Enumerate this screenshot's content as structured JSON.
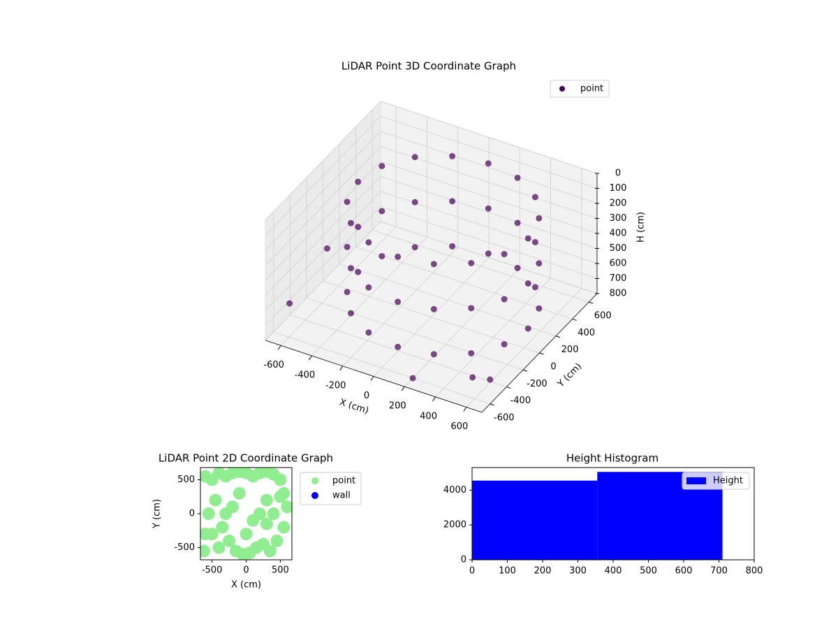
{
  "chart_data": [
    {
      "type": "scatter3d",
      "title": "LiDAR Point 3D Coordinate Graph",
      "xlabel": "X (cm)",
      "ylabel": "Y (cm)",
      "zlabel": "H (cm)",
      "xlim": [
        -700,
        700
      ],
      "ylim": [
        -700,
        700
      ],
      "zlim": [
        0,
        800
      ],
      "z_inverted": true,
      "xticks": [
        -600,
        -400,
        -200,
        0,
        200,
        400,
        600
      ],
      "yticks": [
        -600,
        -400,
        -200,
        0,
        200,
        400,
        600
      ],
      "zticks": [
        0,
        100,
        200,
        300,
        400,
        500,
        600,
        700,
        800
      ],
      "legend": "upper right",
      "series": [
        {
          "name": "point",
          "color": "#440154",
          "x": [
            600,
            558,
            439,
            261,
            50,
            -161,
            -339,
            -458,
            -500,
            -458,
            -339,
            -161,
            50,
            261,
            439,
            558,
            600,
            558,
            439,
            261,
            50,
            -161,
            -339,
            -458,
            -500,
            -458,
            -339,
            -161,
            50,
            261,
            439,
            558,
            600,
            558,
            439,
            261,
            50,
            -161,
            -339,
            -458,
            -500,
            -458,
            -339,
            -161,
            50,
            261,
            439,
            558,
            -650,
            -620,
            620,
            560,
            200
          ],
          "y": [
            50,
            261,
            439,
            558,
            600,
            558,
            439,
            261,
            50,
            -161,
            -339,
            -458,
            -500,
            -458,
            -339,
            -161,
            50,
            261,
            439,
            558,
            600,
            558,
            439,
            261,
            50,
            -161,
            -339,
            -458,
            -500,
            -458,
            -339,
            -161,
            50,
            261,
            439,
            558,
            600,
            558,
            439,
            261,
            50,
            -161,
            -339,
            -458,
            -500,
            -458,
            -339,
            -161,
            -500,
            -100,
            -450,
            -550,
            -600
          ],
          "z": [
            100,
            100,
            100,
            100,
            100,
            100,
            100,
            100,
            100,
            100,
            100,
            100,
            100,
            100,
            100,
            100,
            400,
            400,
            400,
            400,
            400,
            400,
            400,
            400,
            400,
            400,
            400,
            400,
            400,
            400,
            400,
            400,
            700,
            700,
            700,
            700,
            700,
            700,
            700,
            700,
            700,
            700,
            700,
            700,
            700,
            700,
            700,
            700,
            650,
            500,
            750,
            700,
            800
          ]
        }
      ]
    },
    {
      "type": "scatter",
      "title": "LiDAR Point 2D Coordinate Graph",
      "xlabel": "X (cm)",
      "ylabel": "Y (cm)",
      "xlim": [
        -670,
        670
      ],
      "ylim": [
        -680,
        680
      ],
      "xticks": [
        -500,
        0,
        500
      ],
      "yticks": [
        -500,
        0,
        500
      ],
      "legend": "outside right",
      "series": [
        {
          "name": "point",
          "color": "#90ee90",
          "x": [
            -600,
            -620,
            -500,
            -400,
            -300,
            -200,
            -100,
            0,
            100,
            200,
            300,
            400,
            500,
            550,
            600,
            -550,
            -450,
            -350,
            -250,
            -150,
            -50,
            50,
            150,
            250,
            350,
            450,
            550,
            -500,
            -300,
            -100,
            100,
            300,
            500,
            -600,
            -400,
            200,
            -200,
            0,
            400,
            300
          ],
          "y": [
            550,
            -550,
            500,
            600,
            550,
            600,
            620,
            600,
            550,
            600,
            620,
            580,
            500,
            300,
            100,
            0,
            200,
            -200,
            -400,
            -550,
            -600,
            -580,
            -500,
            -450,
            -550,
            -400,
            -200,
            -300,
            0,
            300,
            -100,
            200,
            250,
            -300,
            -500,
            0,
            100,
            -300,
            0,
            -150
          ]
        },
        {
          "name": "wall",
          "color": "#0000ff",
          "x": [],
          "y": []
        }
      ]
    },
    {
      "type": "histogram",
      "title": "Height Histogram",
      "xlim": [
        0,
        800
      ],
      "ylim": [
        0,
        5300
      ],
      "xticks": [
        0,
        100,
        200,
        300,
        400,
        500,
        600,
        700,
        800
      ],
      "yticks": [
        0,
        2000,
        4000
      ],
      "legend": "upper right",
      "series": [
        {
          "name": "Height",
          "color": "#0000ff",
          "bins": [
            0,
            355,
            710
          ],
          "values": [
            4550,
            5050
          ]
        }
      ]
    }
  ]
}
